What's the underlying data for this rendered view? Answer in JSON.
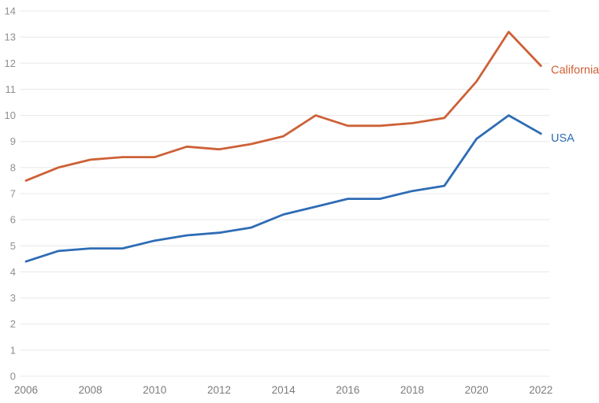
{
  "chart_data": {
    "type": "line",
    "title": "",
    "xlabel": "",
    "ylabel": "",
    "x": [
      2006,
      2007,
      2008,
      2009,
      2010,
      2011,
      2012,
      2013,
      2014,
      2015,
      2016,
      2017,
      2018,
      2019,
      2020,
      2021,
      2022
    ],
    "series": [
      {
        "name": "California",
        "color": "#cd6137",
        "values": [
          7.5,
          8.0,
          8.3,
          8.4,
          8.4,
          8.8,
          8.7,
          8.9,
          9.2,
          10.0,
          9.6,
          9.6,
          9.7,
          9.9,
          11.3,
          13.2,
          11.9
        ]
      },
      {
        "name": "USA",
        "color": "#2e6cb5",
        "values": [
          4.4,
          4.8,
          4.9,
          4.9,
          5.2,
          5.4,
          5.5,
          5.7,
          6.2,
          6.5,
          6.8,
          6.8,
          7.1,
          7.3,
          9.1,
          10.0,
          9.3
        ]
      }
    ],
    "ylim": [
      0,
      14
    ],
    "yticks": [
      0,
      1,
      2,
      3,
      4,
      5,
      6,
      7,
      8,
      9,
      10,
      11,
      12,
      13,
      14
    ],
    "xticks": [
      2006,
      2008,
      2010,
      2012,
      2014,
      2016,
      2018,
      2020,
      2022
    ],
    "grid": "horizontal",
    "legend_position": "line-end-labels-right"
  },
  "styles": {
    "background": "#ffffff",
    "grid_color": "#e8e8e8",
    "ytick_color": "#8f8f8f",
    "xtick_color": "#7c7c7c"
  }
}
